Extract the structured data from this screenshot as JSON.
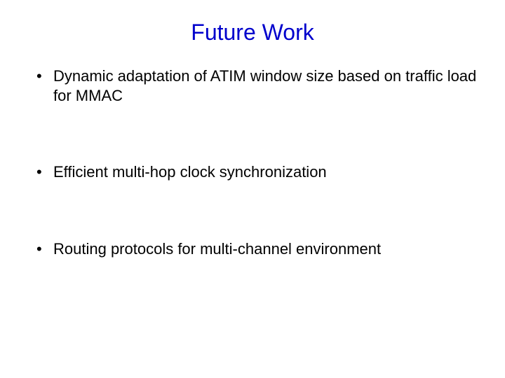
{
  "slide": {
    "title": "Future Work",
    "title_color": "#0000cc",
    "title_fontsize": 32,
    "body_color": "#000000",
    "body_fontsize": 22,
    "background_color": "#ffffff",
    "bullets": [
      "Dynamic adaptation of ATIM window size based on traffic load for MMAC",
      "Efficient multi-hop clock synchronization",
      "Routing protocols for multi-channel environment"
    ]
  }
}
